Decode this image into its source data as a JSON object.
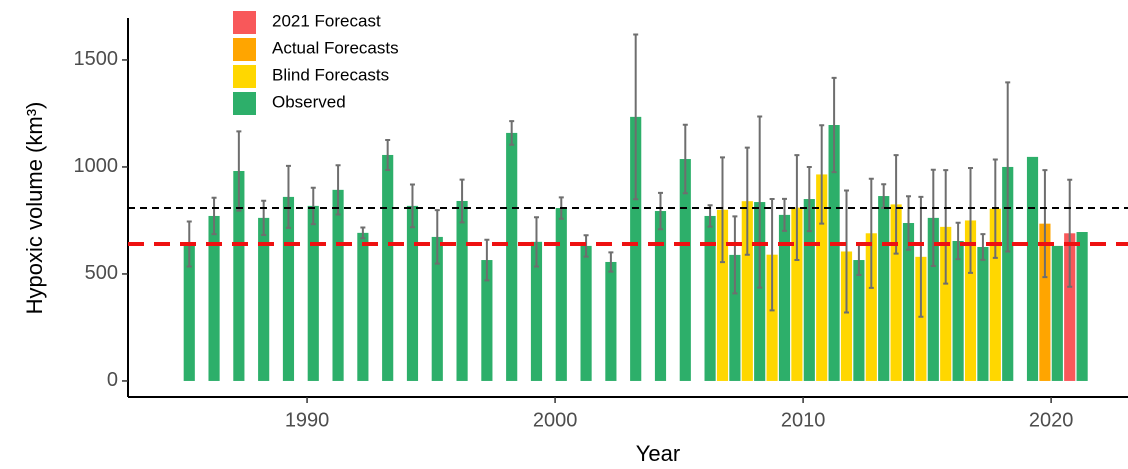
{
  "chart_data": {
    "type": "bar",
    "xlabel": "Year",
    "ylabel": "Hypoxic volume (km³)",
    "x": [
      1985,
      1986,
      1987,
      1988,
      1989,
      1990,
      1991,
      1992,
      1993,
      1994,
      1995,
      1996,
      1997,
      1998,
      1999,
      2000,
      2001,
      2002,
      2003,
      2004,
      2005,
      2006,
      2007,
      2008,
      2009,
      2010,
      2011,
      2012,
      2013,
      2014,
      2015,
      2016,
      2017,
      2018,
      2019,
      2020,
      2021
    ],
    "series": [
      {
        "name": "2021 Forecast",
        "color": "#f8585a",
        "values": [
          null,
          null,
          null,
          null,
          null,
          null,
          null,
          null,
          null,
          null,
          null,
          null,
          null,
          null,
          null,
          null,
          null,
          null,
          null,
          null,
          null,
          null,
          null,
          null,
          null,
          null,
          null,
          null,
          null,
          null,
          null,
          null,
          null,
          null,
          null,
          null,
          690
        ],
        "errors": [
          null,
          null,
          null,
          null,
          null,
          null,
          null,
          null,
          null,
          null,
          null,
          null,
          null,
          null,
          null,
          null,
          null,
          null,
          null,
          null,
          null,
          null,
          null,
          null,
          null,
          null,
          null,
          null,
          null,
          null,
          null,
          null,
          null,
          null,
          null,
          null,
          250
        ]
      },
      {
        "name": "Actual Forecasts",
        "color": "#ffa500",
        "values": [
          null,
          null,
          null,
          null,
          null,
          null,
          null,
          null,
          null,
          null,
          null,
          null,
          null,
          null,
          null,
          null,
          null,
          null,
          null,
          null,
          null,
          null,
          null,
          null,
          null,
          null,
          null,
          null,
          null,
          null,
          null,
          null,
          null,
          null,
          null,
          735,
          null
        ],
        "errors": [
          null,
          null,
          null,
          null,
          null,
          null,
          null,
          null,
          null,
          null,
          null,
          null,
          null,
          null,
          null,
          null,
          null,
          null,
          null,
          null,
          null,
          null,
          null,
          null,
          null,
          null,
          null,
          null,
          null,
          null,
          null,
          null,
          null,
          null,
          null,
          250,
          null
        ]
      },
      {
        "name": "Blind Forecasts",
        "color": "#ffd700",
        "values": [
          null,
          null,
          null,
          null,
          null,
          null,
          null,
          null,
          null,
          null,
          null,
          null,
          null,
          null,
          null,
          null,
          null,
          null,
          null,
          null,
          null,
          null,
          800,
          840,
          590,
          810,
          965,
          605,
          690,
          825,
          580,
          720,
          750,
          805,
          null,
          null,
          null
        ],
        "errors": [
          null,
          null,
          null,
          null,
          null,
          null,
          null,
          null,
          null,
          null,
          null,
          null,
          null,
          null,
          null,
          null,
          null,
          null,
          null,
          null,
          null,
          null,
          245,
          250,
          260,
          245,
          230,
          285,
          255,
          230,
          280,
          265,
          245,
          230,
          null,
          null,
          null
        ]
      },
      {
        "name": "Observed",
        "color": "#2daf6a",
        "values": [
          640,
          771,
          981,
          762,
          860,
          818,
          893,
          692,
          1056,
          818,
          673,
          841,
          565,
          1159,
          650,
          808,
          631,
          556,
          1234,
          794,
          1037,
          771,
          589,
          836,
          776,
          850,
          1196,
          565,
          864,
          738,
          762,
          654,
          626,
          1000,
          1047,
          631,
          696
        ],
        "errors": [
          105,
          85,
          185,
          80,
          145,
          85,
          115,
          25,
          70,
          100,
          125,
          100,
          95,
          55,
          115,
          50,
          50,
          45,
          385,
          85,
          160,
          50,
          180,
          400,
          75,
          150,
          220,
          70,
          55,
          125,
          225,
          85,
          60,
          395,
          null,
          null,
          null
        ]
      }
    ],
    "hlines": [
      {
        "value": 808,
        "color": "#000000"
      },
      {
        "value": 640,
        "color": "#ee1111"
      }
    ],
    "xlim": [
      1982.78,
      2023.1
    ],
    "xticks": [
      1990,
      2000,
      2010,
      2020
    ],
    "ylim": [
      -75,
      1696
    ],
    "yticks": [
      0,
      500,
      1000,
      1500
    ]
  }
}
